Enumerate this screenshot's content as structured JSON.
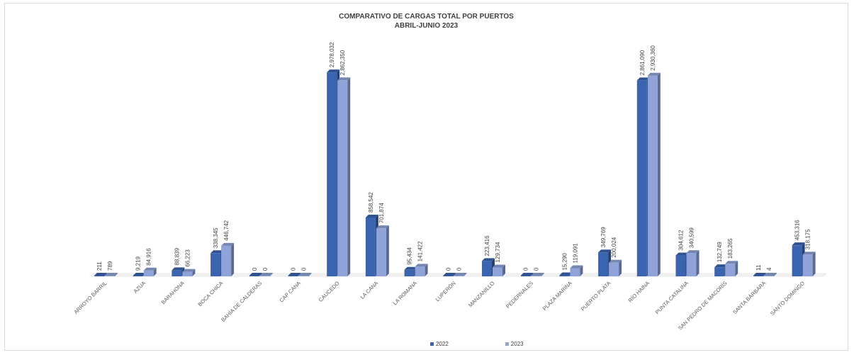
{
  "chart_data": {
    "type": "bar",
    "title": "COMPARATIVO  DE CARGAS  TOTAL POR PUERTOS",
    "subtitle": "ABRIL-JUNIO 2023",
    "categories": [
      "ARROYO BARRIL",
      "AZUA",
      "BARAHONA",
      "BOCA CHICA",
      "BAHÍA DE CALDERAS",
      "CAP CANA",
      "CAUCEDO",
      "LA CANA",
      "LA ROMANA",
      "LUPERÓN",
      "MANZANILLO",
      "PEDERNALES",
      "PLAZA MARINA",
      "PUERTO PLATA",
      "RÍO HAINA",
      "PUNTA CATALINA",
      "SAN PEDRO DE MACORÍS",
      "SANTA BÁRBARA",
      "SANTO DOMINGO"
    ],
    "series": [
      {
        "name": "2022",
        "color": "#3a64b0",
        "values": [
          211,
          9219,
          88839,
          338345,
          0,
          0,
          2978032,
          858542,
          95434,
          0,
          223416,
          0,
          15290,
          349769,
          2861090,
          304612,
          132749,
          11,
          453316
        ],
        "labels": [
          "211",
          "9,219",
          "88,839",
          "338,345",
          "0",
          "0",
          "2,978,032",
          "858,542",
          "95,434",
          "0",
          "223,416",
          "0",
          "15,290",
          "349,769",
          "2,861,090",
          "304,612",
          "132,749",
          "11",
          "453,316"
        ]
      },
      {
        "name": "2023",
        "color": "#8fa3d8",
        "values": [
          789,
          84916,
          66223,
          446742,
          0,
          0,
          2862350,
          701874,
          141422,
          0,
          129734,
          0,
          119091,
          200024,
          2930360,
          340599,
          183265,
          4,
          318175
        ],
        "labels": [
          "789",
          "84,916",
          "66,223",
          "446,742",
          "0",
          "0",
          "2,862,350",
          "701,874",
          "141,422",
          "0",
          "129,734",
          "0",
          "119,091",
          "200,024",
          "2,930,360",
          "340,599",
          "183,265",
          "4",
          "318,175"
        ]
      }
    ],
    "ylim": [
      0,
      3000000
    ],
    "grid": false,
    "legend_position": "bottom"
  }
}
